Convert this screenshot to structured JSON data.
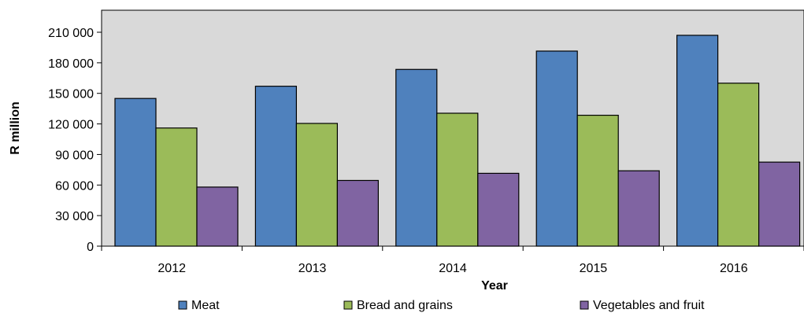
{
  "chart_data": {
    "type": "bar",
    "categories": [
      "2012",
      "2013",
      "2014",
      "2015",
      "2016"
    ],
    "series": [
      {
        "name": "Meat",
        "values": [
          145000,
          157000,
          173500,
          191500,
          207000
        ],
        "color": "#4F81BD"
      },
      {
        "name": "Bread and grains",
        "values": [
          116000,
          120500,
          130500,
          128500,
          160000
        ],
        "color": "#9BBB59"
      },
      {
        "name": "Vegetables and fruit",
        "values": [
          58000,
          64500,
          71500,
          74000,
          82500
        ],
        "color": "#8064A2"
      }
    ],
    "xlabel": "Year",
    "ylabel": "R million",
    "ylim": [
      0,
      210000
    ],
    "yticks": [
      0,
      30000,
      60000,
      90000,
      120000,
      150000,
      180000,
      210000
    ],
    "ytick_labels": [
      "0",
      "30 000",
      "60 000",
      "90 000",
      "120 000",
      "150 000",
      "180 000",
      "210 000"
    ],
    "plot_background": "#D9D9D9",
    "grid": false,
    "legend_position": "bottom"
  }
}
